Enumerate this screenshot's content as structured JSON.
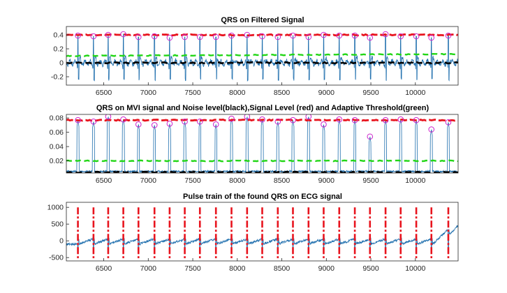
{
  "colors": {
    "signal": "#1f6fae",
    "signal_level": "#e8141e",
    "noise_level": "#000000",
    "threshold": "#22d616",
    "peak_marker": "#cc22cc",
    "pulse": "#e8141e"
  },
  "chart_data": [
    {
      "type": "line",
      "title": "QRS on Filtered Signal",
      "xlim": [
        6080,
        10480
      ],
      "ylim": [
        -0.32,
        0.52
      ],
      "xticks": [
        6500,
        7000,
        7500,
        8000,
        8500,
        9000,
        9500,
        10000
      ],
      "yticks": [
        -0.2,
        0,
        0.2,
        0.4
      ],
      "ytick_labels": [
        "-0.2",
        "0",
        "0.2",
        "0.4"
      ],
      "qrs_x": [
        6210,
        6385,
        6550,
        6720,
        6890,
        7070,
        7240,
        7410,
        7580,
        7760,
        7935,
        8110,
        8280,
        8455,
        8625,
        8800,
        8970,
        9145,
        9320,
        9490,
        9665,
        9835,
        10010,
        10180,
        10370
      ],
      "qrs_peak_y": [
        0.39,
        0.38,
        0.4,
        0.41,
        0.37,
        0.38,
        0.36,
        0.37,
        0.37,
        0.37,
        0.39,
        0.4,
        0.38,
        0.37,
        0.39,
        0.37,
        0.4,
        0.39,
        0.39,
        0.36,
        0.41,
        0.38,
        0.38,
        0.36,
        0.39
      ],
      "qrs_trough_y": -0.24,
      "signal_level_y": 0.4,
      "threshold_y": 0.11,
      "noise_level_y": 0.0
    },
    {
      "type": "line",
      "title": "QRS on MVI signal and Noise level(black),Signal Level (red) and Adaptive Threshold(green)",
      "xlim": [
        6080,
        10480
      ],
      "ylim": [
        0.003,
        0.085
      ],
      "xticks": [
        6500,
        7000,
        7500,
        8000,
        8500,
        9000,
        9500,
        10000
      ],
      "yticks": [
        0.02,
        0.04,
        0.06,
        0.08
      ],
      "ytick_labels": [
        "0.02",
        "0.04",
        "0.06",
        "0.08"
      ],
      "qrs_x": [
        6210,
        6385,
        6550,
        6720,
        6890,
        7070,
        7240,
        7410,
        7580,
        7760,
        7935,
        8110,
        8280,
        8455,
        8625,
        8800,
        8970,
        9145,
        9320,
        9490,
        9665,
        9835,
        10010,
        10180,
        10370
      ],
      "qrs_peak_y": [
        0.077,
        0.075,
        0.082,
        0.078,
        0.071,
        0.07,
        0.072,
        0.075,
        0.075,
        0.071,
        0.079,
        0.082,
        0.078,
        0.075,
        0.077,
        0.082,
        0.071,
        0.078,
        0.077,
        0.054,
        0.077,
        0.078,
        0.077,
        0.064,
        0.074
      ],
      "signal_level_y": 0.077,
      "threshold_y": 0.02,
      "noise_level_y": 0.004
    },
    {
      "type": "line",
      "title": "Pulse train of the found QRS on ECG signal",
      "xlim": [
        6080,
        10480
      ],
      "ylim": [
        -600,
        1150
      ],
      "xticks": [
        6500,
        7000,
        7500,
        8000,
        8500,
        9000,
        9500,
        10000
      ],
      "yticks": [
        -500,
        0,
        500,
        1000
      ],
      "ytick_labels": [
        "-500",
        "0",
        "500",
        "1000"
      ],
      "pulse_x": [
        6210,
        6385,
        6550,
        6720,
        6890,
        7070,
        7240,
        7410,
        7580,
        7760,
        7935,
        8110,
        8280,
        8455,
        8625,
        8800,
        8970,
        9145,
        9320,
        9490,
        9665,
        9835,
        10010,
        10180,
        10370
      ],
      "pulse_range": [
        -520,
        1000
      ],
      "ecg_baseline": 0
    }
  ]
}
